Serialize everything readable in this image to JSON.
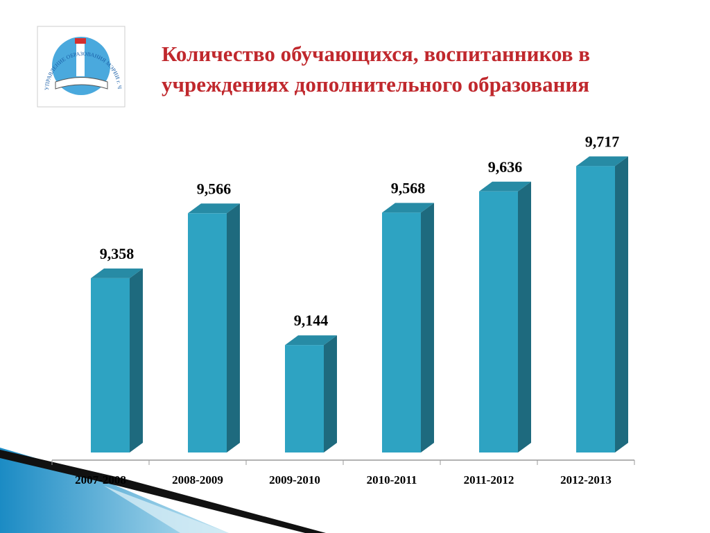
{
  "logo_text": "УПРАВЛЕНИЕ ОБРАЗОВАНИЯ МЭРИИ г. ЧЕРЕПОВЦА",
  "chart_data": {
    "type": "bar3d",
    "title": "Количество обучающихся, воспитанников в учреждениях дополнительного образования",
    "categories": [
      "2007-2008",
      "2008-2009",
      "2009-2010",
      "2010-2011",
      "2011-2012",
      "2012-2013"
    ],
    "values": [
      9358,
      9566,
      9144,
      9568,
      9636,
      9717
    ],
    "value_labels": [
      "9,358",
      "9,566",
      "9,144",
      "9,568",
      "9,636",
      "9,717"
    ],
    "color": "#2ea3c2",
    "ylim": [
      8800,
      9800
    ]
  }
}
